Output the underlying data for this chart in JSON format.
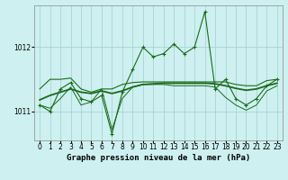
{
  "title": "Graphe pression niveau de la mer (hPa)",
  "background_color": "#cef0f0",
  "plot_bg_color": "#cef0f0",
  "grid_color": "#9ecfcf",
  "line_color": "#1a6b1a",
  "x_values": [
    0,
    1,
    2,
    3,
    4,
    5,
    6,
    7,
    8,
    9,
    10,
    11,
    12,
    13,
    14,
    15,
    16,
    17,
    18,
    19,
    20,
    21,
    22,
    23
  ],
  "series_main": [
    1011.1,
    1011.0,
    1011.35,
    1011.45,
    1011.2,
    1011.15,
    1011.25,
    1010.65,
    1011.3,
    1011.65,
    1012.0,
    1011.85,
    1011.9,
    1012.05,
    1011.9,
    1012.0,
    1012.55,
    1011.35,
    1011.5,
    1011.2,
    1011.1,
    1011.2,
    1011.4,
    1011.5
  ],
  "series_upper": [
    1011.35,
    1011.5,
    1011.5,
    1011.52,
    1011.35,
    1011.3,
    1011.35,
    1011.35,
    1011.42,
    1011.45,
    1011.46,
    1011.46,
    1011.46,
    1011.46,
    1011.46,
    1011.46,
    1011.46,
    1011.46,
    1011.46,
    1011.42,
    1011.4,
    1011.4,
    1011.48,
    1011.5
  ],
  "series_lower": [
    1011.1,
    1011.05,
    1011.2,
    1011.38,
    1011.1,
    1011.15,
    1011.35,
    1010.72,
    1011.2,
    1011.38,
    1011.42,
    1011.42,
    1011.42,
    1011.4,
    1011.4,
    1011.4,
    1011.4,
    1011.38,
    1011.22,
    1011.1,
    1011.02,
    1011.1,
    1011.32,
    1011.4
  ],
  "series_trend": [
    1011.18,
    1011.25,
    1011.3,
    1011.35,
    1011.3,
    1011.28,
    1011.32,
    1011.28,
    1011.32,
    1011.38,
    1011.42,
    1011.43,
    1011.44,
    1011.44,
    1011.44,
    1011.44,
    1011.44,
    1011.43,
    1011.4,
    1011.36,
    1011.33,
    1011.35,
    1011.4,
    1011.44
  ],
  "ylim": [
    1010.55,
    1012.65
  ],
  "yticks": [
    1011,
    1012
  ],
  "xticks": [
    0,
    1,
    2,
    3,
    4,
    5,
    6,
    7,
    8,
    9,
    10,
    11,
    12,
    13,
    14,
    15,
    16,
    17,
    18,
    19,
    20,
    21,
    22,
    23
  ],
  "title_fontsize": 6.5,
  "tick_fontsize": 5.5
}
